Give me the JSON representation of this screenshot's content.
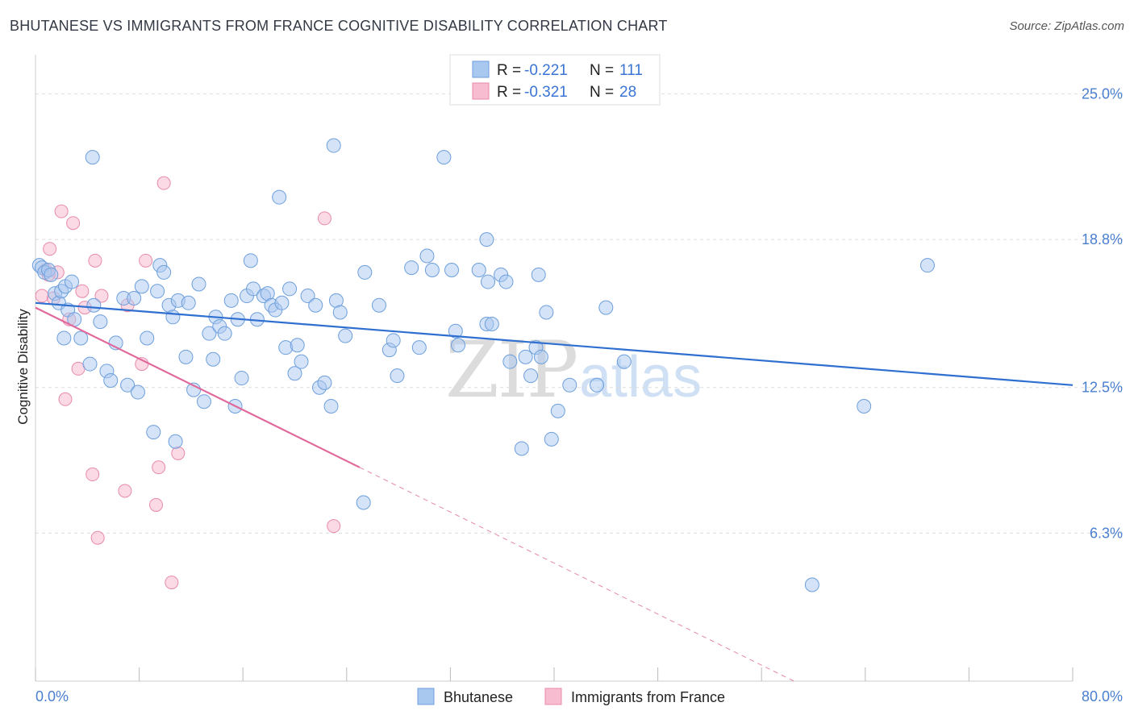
{
  "title": "BHUTANESE VS IMMIGRANTS FROM FRANCE COGNITIVE DISABILITY CORRELATION CHART",
  "source": "Source: ZipAtlas.com",
  "watermark": {
    "zip": "ZIP",
    "atlas": "atlas"
  },
  "colors": {
    "blue_fill": "#a9c8ef",
    "blue_stroke": "#6d9fdc",
    "blue_line": "#2f6fd0",
    "pink_fill": "#f7bcd0",
    "pink_stroke": "#e88aab",
    "pink_line": "#e0689a",
    "grid": "#dddddd",
    "tick_text": "#4a7fd0"
  },
  "legend": {
    "rows": [
      {
        "r_label": "R =",
        "r_value": "-0.221",
        "n_label": "N =",
        "n_value": "111"
      },
      {
        "r_label": "R =",
        "r_value": "-0.321",
        "n_label": "N =",
        "n_value": "28"
      }
    ]
  },
  "bottom_legend": [
    "Bhutanese",
    "Immigrants from France"
  ],
  "chart_data": {
    "type": "scatter",
    "title": "BHUTANESE VS IMMIGRANTS FROM FRANCE COGNITIVE DISABILITY CORRELATION CHART",
    "xlabel": "",
    "ylabel": "Cognitive Disability",
    "xlim": [
      0,
      80
    ],
    "ylim": [
      0,
      26.25
    ],
    "x_tick_labels": [
      "0.0%",
      "80.0%"
    ],
    "y_ticks": [
      6.3,
      12.5,
      18.8,
      25.0
    ],
    "y_tick_labels": [
      "6.3%",
      "12.5%",
      "18.8%",
      "25.0%"
    ],
    "series": [
      {
        "name": "Bhutanese",
        "R": -0.221,
        "N": 111,
        "trend": {
          "x": [
            0,
            80
          ],
          "y": [
            16.1,
            12.6
          ]
        },
        "points": [
          [
            0.3,
            17.7
          ],
          [
            0.5,
            17.6
          ],
          [
            0.7,
            17.4
          ],
          [
            1.0,
            17.5
          ],
          [
            1.2,
            17.3
          ],
          [
            1.5,
            16.5
          ],
          [
            1.8,
            16.1
          ],
          [
            2.0,
            16.6
          ],
          [
            2.3,
            16.8
          ],
          [
            2.5,
            15.8
          ],
          [
            2.8,
            17.0
          ],
          [
            3.0,
            15.4
          ],
          [
            2.2,
            14.6
          ],
          [
            3.5,
            14.6
          ],
          [
            4.2,
            13.5
          ],
          [
            4.5,
            16.0
          ],
          [
            5.0,
            15.3
          ],
          [
            5.5,
            13.2
          ],
          [
            5.8,
            12.8
          ],
          [
            6.2,
            14.4
          ],
          [
            6.8,
            16.3
          ],
          [
            7.1,
            12.6
          ],
          [
            7.6,
            16.3
          ],
          [
            7.9,
            12.3
          ],
          [
            8.2,
            16.8
          ],
          [
            8.6,
            14.6
          ],
          [
            9.1,
            10.6
          ],
          [
            9.4,
            16.6
          ],
          [
            9.6,
            17.7
          ],
          [
            9.9,
            17.4
          ],
          [
            10.3,
            16.0
          ],
          [
            10.6,
            15.5
          ],
          [
            10.8,
            10.2
          ],
          [
            11.0,
            16.2
          ],
          [
            11.6,
            13.8
          ],
          [
            11.8,
            16.1
          ],
          [
            12.2,
            12.4
          ],
          [
            12.6,
            16.9
          ],
          [
            13.0,
            11.9
          ],
          [
            13.4,
            14.8
          ],
          [
            13.7,
            13.7
          ],
          [
            13.9,
            15.5
          ],
          [
            14.2,
            15.1
          ],
          [
            14.6,
            14.8
          ],
          [
            15.1,
            16.2
          ],
          [
            15.4,
            11.7
          ],
          [
            15.6,
            15.4
          ],
          [
            15.9,
            12.9
          ],
          [
            16.3,
            16.4
          ],
          [
            16.6,
            17.9
          ],
          [
            16.8,
            16.7
          ],
          [
            17.1,
            15.4
          ],
          [
            17.6,
            16.4
          ],
          [
            17.9,
            16.5
          ],
          [
            18.2,
            16.0
          ],
          [
            18.5,
            15.8
          ],
          [
            18.8,
            20.6
          ],
          [
            19.0,
            16.1
          ],
          [
            19.3,
            14.2
          ],
          [
            19.6,
            16.7
          ],
          [
            20.0,
            13.1
          ],
          [
            20.2,
            14.3
          ],
          [
            20.5,
            13.6
          ],
          [
            21.0,
            16.4
          ],
          [
            21.6,
            16.0
          ],
          [
            21.9,
            12.5
          ],
          [
            22.3,
            12.7
          ],
          [
            22.8,
            11.7
          ],
          [
            23.0,
            22.8
          ],
          [
            23.2,
            16.2
          ],
          [
            23.5,
            15.7
          ],
          [
            23.9,
            14.7
          ],
          [
            25.4,
            17.4
          ],
          [
            26.5,
            16.0
          ],
          [
            27.3,
            14.1
          ],
          [
            27.6,
            14.5
          ],
          [
            27.9,
            13.0
          ],
          [
            29.0,
            17.6
          ],
          [
            29.6,
            14.2
          ],
          [
            30.2,
            18.1
          ],
          [
            30.6,
            17.5
          ],
          [
            31.5,
            22.3
          ],
          [
            32.1,
            17.5
          ],
          [
            32.4,
            14.9
          ],
          [
            32.6,
            14.3
          ],
          [
            34.2,
            17.5
          ],
          [
            34.8,
            15.2
          ],
          [
            34.8,
            18.8
          ],
          [
            34.9,
            17.0
          ],
          [
            35.2,
            15.2
          ],
          [
            35.9,
            17.3
          ],
          [
            36.3,
            17.0
          ],
          [
            36.6,
            13.6
          ],
          [
            37.5,
            9.9
          ],
          [
            37.8,
            13.8
          ],
          [
            38.2,
            13.0
          ],
          [
            38.6,
            14.2
          ],
          [
            38.8,
            17.3
          ],
          [
            39.0,
            13.8
          ],
          [
            39.4,
            15.7
          ],
          [
            39.8,
            10.3
          ],
          [
            40.3,
            11.5
          ],
          [
            41.2,
            12.6
          ],
          [
            43.3,
            12.6
          ],
          [
            44.0,
            15.9
          ],
          [
            45.4,
            13.6
          ],
          [
            25.3,
            7.6
          ],
          [
            63.9,
            11.7
          ],
          [
            68.8,
            17.7
          ],
          [
            59.9,
            4.1
          ],
          [
            4.4,
            22.3
          ]
        ]
      },
      {
        "name": "Immigrants from France",
        "R": -0.321,
        "N": 28,
        "trend": {
          "x": [
            0,
            25
          ],
          "y": [
            15.9,
            9.1
          ]
        },
        "trend_dashed": {
          "x": [
            25,
            58.5
          ],
          "y": [
            9.1,
            0
          ]
        },
        "points": [
          [
            0.5,
            16.4
          ],
          [
            0.8,
            17.5
          ],
          [
            1.1,
            18.4
          ],
          [
            1.4,
            16.3
          ],
          [
            1.7,
            17.4
          ],
          [
            2.0,
            20.0
          ],
          [
            2.3,
            12.0
          ],
          [
            2.6,
            15.4
          ],
          [
            2.9,
            19.5
          ],
          [
            3.3,
            13.3
          ],
          [
            3.6,
            16.6
          ],
          [
            3.8,
            15.9
          ],
          [
            4.4,
            8.8
          ],
          [
            4.6,
            17.9
          ],
          [
            4.8,
            6.1
          ],
          [
            5.1,
            16.4
          ],
          [
            6.9,
            8.1
          ],
          [
            7.1,
            16.0
          ],
          [
            8.2,
            13.5
          ],
          [
            8.5,
            17.9
          ],
          [
            9.3,
            7.5
          ],
          [
            9.5,
            9.1
          ],
          [
            9.9,
            21.2
          ],
          [
            10.5,
            4.2
          ],
          [
            11.0,
            9.7
          ],
          [
            22.3,
            19.7
          ],
          [
            23.0,
            6.6
          ],
          [
            1.0,
            17.3
          ]
        ]
      }
    ]
  }
}
